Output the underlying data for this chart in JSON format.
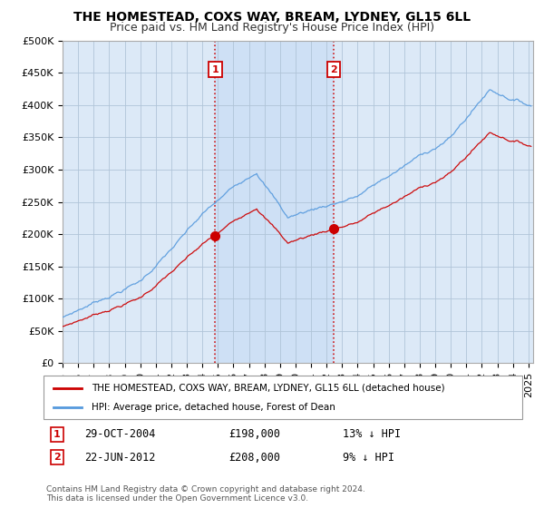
{
  "title": "THE HOMESTEAD, COXS WAY, BREAM, LYDNEY, GL15 6LL",
  "subtitle": "Price paid vs. HM Land Registry's House Price Index (HPI)",
  "ylim": [
    0,
    500000
  ],
  "yticks": [
    0,
    50000,
    100000,
    150000,
    200000,
    250000,
    300000,
    350000,
    400000,
    450000,
    500000
  ],
  "ytick_labels": [
    "£0",
    "£50K",
    "£100K",
    "£150K",
    "£200K",
    "£250K",
    "£300K",
    "£350K",
    "£400K",
    "£450K",
    "£500K"
  ],
  "xlim_start": 1995.0,
  "xlim_end": 2025.3,
  "background_color": "#ffffff",
  "plot_bg_color": "#dce9f7",
  "shade_color": "#c5d9f0",
  "grid_color": "#b0c4d8",
  "sale1_date": 2004.83,
  "sale1_price": 198000,
  "sale1_label": "1",
  "sale2_date": 2012.47,
  "sale2_price": 208000,
  "sale2_label": "2",
  "sale_marker_color": "#cc0000",
  "sale_line_color": "#cc0000",
  "hpi_line_color": "#5599dd",
  "legend_label1": "THE HOMESTEAD, COXS WAY, BREAM, LYDNEY, GL15 6LL (detached house)",
  "legend_label2": "HPI: Average price, detached house, Forest of Dean",
  "footer": "Contains HM Land Registry data © Crown copyright and database right 2024.\nThis data is licensed under the Open Government Licence v3.0.",
  "title_fontsize": 10,
  "subtitle_fontsize": 9,
  "tick_fontsize": 8,
  "ann1_date": "29-OCT-2004",
  "ann1_price": "£198,000",
  "ann1_pct": "13% ↓ HPI",
  "ann2_date": "22-JUN-2012",
  "ann2_price": "£208,000",
  "ann2_pct": "9% ↓ HPI"
}
